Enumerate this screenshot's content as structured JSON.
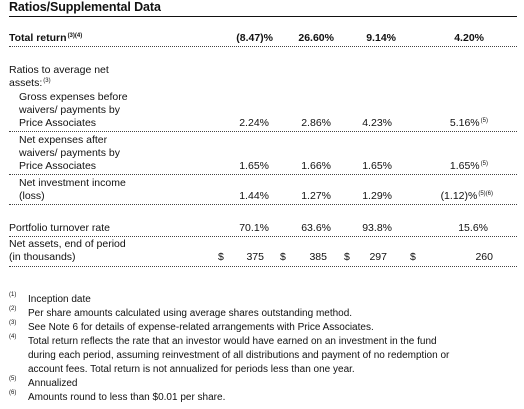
{
  "title": "Ratios/Supplemental Data",
  "rows": {
    "total_return": {
      "label": "Total return",
      "sup": "(3)(4)",
      "values": [
        "(8.47)%",
        "26.60%",
        "9.14%",
        "4.20%"
      ]
    },
    "ratios_heading": {
      "line1": "Ratios to average net",
      "line2": "assets:",
      "sup": "(3)"
    },
    "gross_expenses": {
      "lines": [
        "Gross expenses before",
        "waivers/ payments by",
        "Price Associates"
      ],
      "values": [
        "2.24%",
        "2.86%",
        "4.23%",
        "5.16%"
      ],
      "last_sup": "(5)"
    },
    "net_expenses": {
      "lines": [
        "Net expenses after",
        "waivers/ payments by",
        "Price Associates"
      ],
      "values": [
        "1.65%",
        "1.66%",
        "1.65%",
        "1.65%"
      ],
      "last_sup": "(5)"
    },
    "net_investment_income": {
      "lines": [
        "Net investment income",
        "(loss)"
      ],
      "values": [
        "1.44%",
        "1.27%",
        "1.29%",
        "(1.12)%"
      ],
      "last_sup": "(5)(6)"
    },
    "portfolio_turnover": {
      "label": "Portfolio turnover rate",
      "values": [
        "70.1%",
        "63.6%",
        "93.8%",
        "15.6%"
      ]
    },
    "net_assets": {
      "lines": [
        "Net assets, end of period",
        "(in thousands)"
      ],
      "currency": "$",
      "values": [
        "375",
        "385",
        "297",
        "260"
      ]
    }
  },
  "footnotes": [
    {
      "mark": "(1)",
      "lines": [
        "Inception date"
      ]
    },
    {
      "mark": "(2)",
      "lines": [
        "Per share amounts calculated using average shares outstanding method."
      ]
    },
    {
      "mark": "(3)",
      "lines": [
        "See Note 6 for details of expense-related arrangements with Price Associates."
      ]
    },
    {
      "mark": "(4)",
      "lines": [
        "Total return reflects the rate that an investor would have earned on an investment in the fund",
        "during each period, assuming reinvestment of all distributions and payment of no redemption or",
        "account fees. Total return is not annualized for periods less than one year."
      ]
    },
    {
      "mark": "(5)",
      "lines": [
        "Annualized"
      ]
    },
    {
      "mark": "(6)",
      "lines": [
        "Amounts round to less than $0.01 per share."
      ]
    }
  ]
}
